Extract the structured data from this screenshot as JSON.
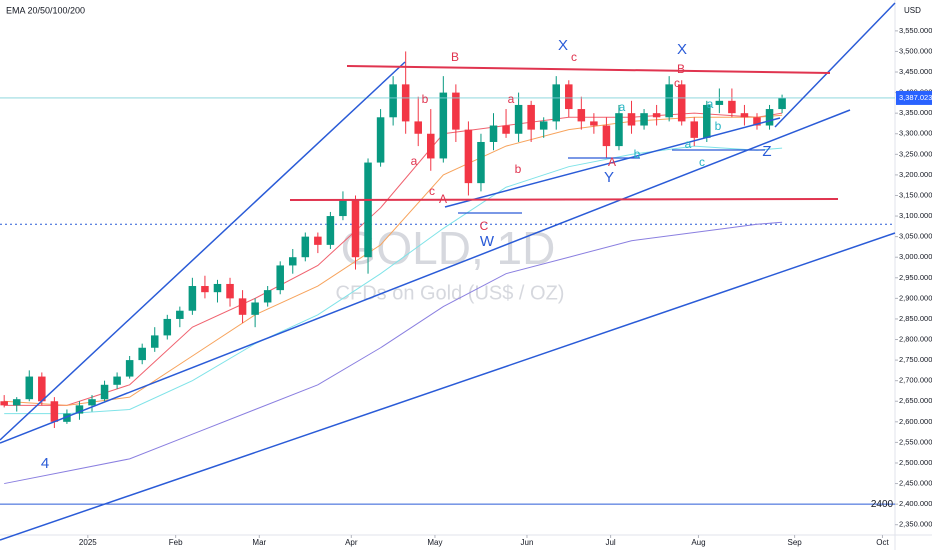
{
  "chart_data": {
    "type": "candlestick",
    "indicator_label": "EMA 20/50/100/200",
    "currency": "USD",
    "watermark": "GOLD, 1D",
    "watermark_subtitle": "CFDs on Gold (US$ / OZ)",
    "x": [
      0,
      3,
      6,
      9,
      12,
      15,
      18,
      21,
      24,
      27,
      30,
      33,
      36,
      39,
      42,
      45,
      48,
      51,
      54,
      57,
      60,
      63,
      66,
      69,
      72,
      75,
      78,
      81,
      84,
      87,
      90,
      93,
      96,
      99,
      102,
      105,
      108,
      111,
      114,
      117,
      120,
      123,
      126,
      129,
      132,
      135,
      138,
      141,
      144,
      147,
      150,
      153,
      156,
      159,
      162,
      165,
      168,
      171,
      174,
      177,
      180,
      183,
      186
    ],
    "open": [
      2650,
      2640,
      2655,
      2710,
      2650,
      2600,
      2620,
      2640,
      2655,
      2690,
      2710,
      2750,
      2780,
      2810,
      2850,
      2870,
      2930,
      2915,
      2935,
      2900,
      2860,
      2890,
      2920,
      2980,
      3000,
      3050,
      3030,
      3100,
      3140,
      3000,
      3230,
      3340,
      3420,
      3330,
      3300,
      3240,
      3400,
      3310,
      3180,
      3280,
      3320,
      3300,
      3370,
      3310,
      3330,
      3420,
      3360,
      3330,
      3320,
      3270,
      3350,
      3320,
      3350,
      3340,
      3420,
      3330,
      3290,
      3370,
      3380,
      3350,
      3340,
      3320,
      3360
    ],
    "high": [
      2665,
      2660,
      2725,
      2720,
      2660,
      2630,
      2650,
      2665,
      2700,
      2720,
      2760,
      2790,
      2830,
      2860,
      2880,
      2950,
      2955,
      2945,
      2950,
      2920,
      2900,
      2930,
      2990,
      3020,
      3060,
      3060,
      3110,
      3160,
      3150,
      3240,
      3360,
      3440,
      3500,
      3390,
      3360,
      3440,
      3420,
      3330,
      3300,
      3350,
      3360,
      3400,
      3380,
      3340,
      3440,
      3430,
      3390,
      3350,
      3340,
      3370,
      3380,
      3360,
      3370,
      3440,
      3430,
      3340,
      3380,
      3410,
      3410,
      3370,
      3350,
      3370,
      3395
    ],
    "low": [
      2635,
      2625,
      2650,
      2640,
      2585,
      2595,
      2605,
      2625,
      2650,
      2680,
      2705,
      2740,
      2770,
      2800,
      2830,
      2860,
      2900,
      2890,
      2880,
      2840,
      2830,
      2880,
      2910,
      2960,
      2990,
      3010,
      3020,
      3090,
      2970,
      2960,
      3220,
      3320,
      3300,
      3270,
      3210,
      3230,
      3280,
      3150,
      3160,
      3260,
      3290,
      3280,
      3280,
      3290,
      3310,
      3340,
      3310,
      3300,
      3240,
      3260,
      3300,
      3310,
      3320,
      3330,
      3320,
      3270,
      3280,
      3350,
      3340,
      3320,
      3310,
      3310,
      3350
    ],
    "close": [
      2640,
      2655,
      2710,
      2650,
      2600,
      2620,
      2640,
      2655,
      2690,
      2710,
      2750,
      2780,
      2810,
      2850,
      2870,
      2930,
      2915,
      2935,
      2900,
      2860,
      2890,
      2920,
      2980,
      3000,
      3050,
      3030,
      3100,
      3140,
      3000,
      3230,
      3340,
      3420,
      3330,
      3300,
      3240,
      3400,
      3310,
      3180,
      3280,
      3320,
      3300,
      3370,
      3310,
      3330,
      3420,
      3360,
      3330,
      3320,
      3270,
      3350,
      3320,
      3350,
      3340,
      3420,
      3330,
      3290,
      3370,
      3380,
      3350,
      3340,
      3320,
      3360,
      3387
    ],
    "up_color": "#089981",
    "down_color": "#f23645",
    "ema_x": [
      0,
      15,
      30,
      45,
      60,
      75,
      90,
      105,
      120,
      135,
      150,
      165,
      180,
      186
    ],
    "emas": [
      {
        "color": "#f0626f",
        "values": [
          2640,
          2640,
          2690,
          2830,
          2900,
          2980,
          3120,
          3300,
          3320,
          3340,
          3340,
          3350,
          3340,
          3350
        ]
      },
      {
        "color": "#f7a35c",
        "values": [
          2650,
          2640,
          2660,
          2760,
          2860,
          2930,
          3030,
          3200,
          3270,
          3310,
          3330,
          3340,
          3340,
          3345
        ]
      },
      {
        "color": "#7fe3e8",
        "values": [
          2620,
          2620,
          2630,
          2700,
          2790,
          2860,
          2960,
          3070,
          3170,
          3220,
          3250,
          3270,
          3260,
          3265
        ]
      },
      {
        "color": "#8a7fe0",
        "values": [
          2450,
          2480,
          2510,
          2570,
          2630,
          2690,
          2780,
          2880,
          2960,
          3000,
          3040,
          3060,
          3080,
          3085
        ]
      }
    ],
    "xlim": [
      -1,
      213
    ],
    "xticks": [
      {
        "value": 20,
        "label": "2025"
      },
      {
        "value": 41,
        "label": "Feb"
      },
      {
        "value": 61,
        "label": "Mar"
      },
      {
        "value": 83,
        "label": "Apr"
      },
      {
        "value": 103,
        "label": "May"
      },
      {
        "value": 125,
        "label": "Jun"
      },
      {
        "value": 145,
        "label": "Jul"
      },
      {
        "value": 166,
        "label": "Aug"
      },
      {
        "value": 189,
        "label": "Sep"
      },
      {
        "value": 210,
        "label": "Oct"
      }
    ],
    "ylim": [
      2325,
      3625
    ],
    "yticks": [
      {
        "value": 2350,
        "label": "2,350.000"
      },
      {
        "value": 2400,
        "label": "2,400.000"
      },
      {
        "value": 2450,
        "label": "2,450.000"
      },
      {
        "value": 2500,
        "label": "2,500.000"
      },
      {
        "value": 2550,
        "label": "2,550.000"
      },
      {
        "value": 2600,
        "label": "2,600.000"
      },
      {
        "value": 2650,
        "label": "2,650.000"
      },
      {
        "value": 2700,
        "label": "2,700.000"
      },
      {
        "value": 2750,
        "label": "2,750.000"
      },
      {
        "value": 2800,
        "label": "2,800.000"
      },
      {
        "value": 2850,
        "label": "2,850.000"
      },
      {
        "value": 2900,
        "label": "2,900.000"
      },
      {
        "value": 2950,
        "label": "2,950.000"
      },
      {
        "value": 3000,
        "label": "3,000.000"
      },
      {
        "value": 3050,
        "label": "3,050.000"
      },
      {
        "value": 3100,
        "label": "3,100.000"
      },
      {
        "value": 3150,
        "label": "3,150.000"
      },
      {
        "value": 3200,
        "label": "3,200.000"
      },
      {
        "value": 3250,
        "label": "3,250.000"
      },
      {
        "value": 3300,
        "label": "3,300.000"
      },
      {
        "value": 3350,
        "label": "3,350.000"
      },
      {
        "value": 3400,
        "label": "3,400.000"
      },
      {
        "value": 3450,
        "label": "3,450.000"
      },
      {
        "value": 3500,
        "label": "3,500.000"
      },
      {
        "value": 3550,
        "label": "3,550.000"
      }
    ],
    "last_price": {
      "value": 3387.023,
      "label": "3,387.023"
    },
    "level": 2400,
    "reference_level": 3080,
    "annotations": [
      {
        "text": "X",
        "color": "#2a5bd7"
      },
      {
        "text": "X",
        "color": "#2a5bd7"
      },
      {
        "text": "W",
        "color": "#2a5bd7"
      },
      {
        "text": "Y",
        "color": "#2a5bd7"
      },
      {
        "text": "Z",
        "color": "#2a5bd7"
      },
      {
        "text": "4",
        "color": "#2a5bd7"
      },
      {
        "text": "B",
        "color": "#e0344f"
      },
      {
        "text": "c",
        "color": "#e0344f"
      },
      {
        "text": "B",
        "color": "#e0344f"
      },
      {
        "text": "b",
        "color": "#e0344f"
      },
      {
        "text": "a",
        "color": "#e0344f"
      },
      {
        "text": "a",
        "color": "#e0344f"
      },
      {
        "text": "b",
        "color": "#e0344f"
      },
      {
        "text": "c",
        "color": "#e0344f"
      },
      {
        "text": "A",
        "color": "#e0344f"
      },
      {
        "text": "C",
        "color": "#e0344f"
      },
      {
        "text": "A",
        "color": "#e0344f"
      },
      {
        "text": "c",
        "color": "#e0344f"
      },
      {
        "text": "a",
        "color": "#26b5c4"
      },
      {
        "text": "b",
        "color": "#26b5c4"
      },
      {
        "text": "a",
        "color": "#26b5c4"
      },
      {
        "text": "c",
        "color": "#26b5c4"
      },
      {
        "text": "b",
        "color": "#26b5c4"
      },
      {
        "text": "a",
        "color": "#26b5c4"
      }
    ]
  }
}
